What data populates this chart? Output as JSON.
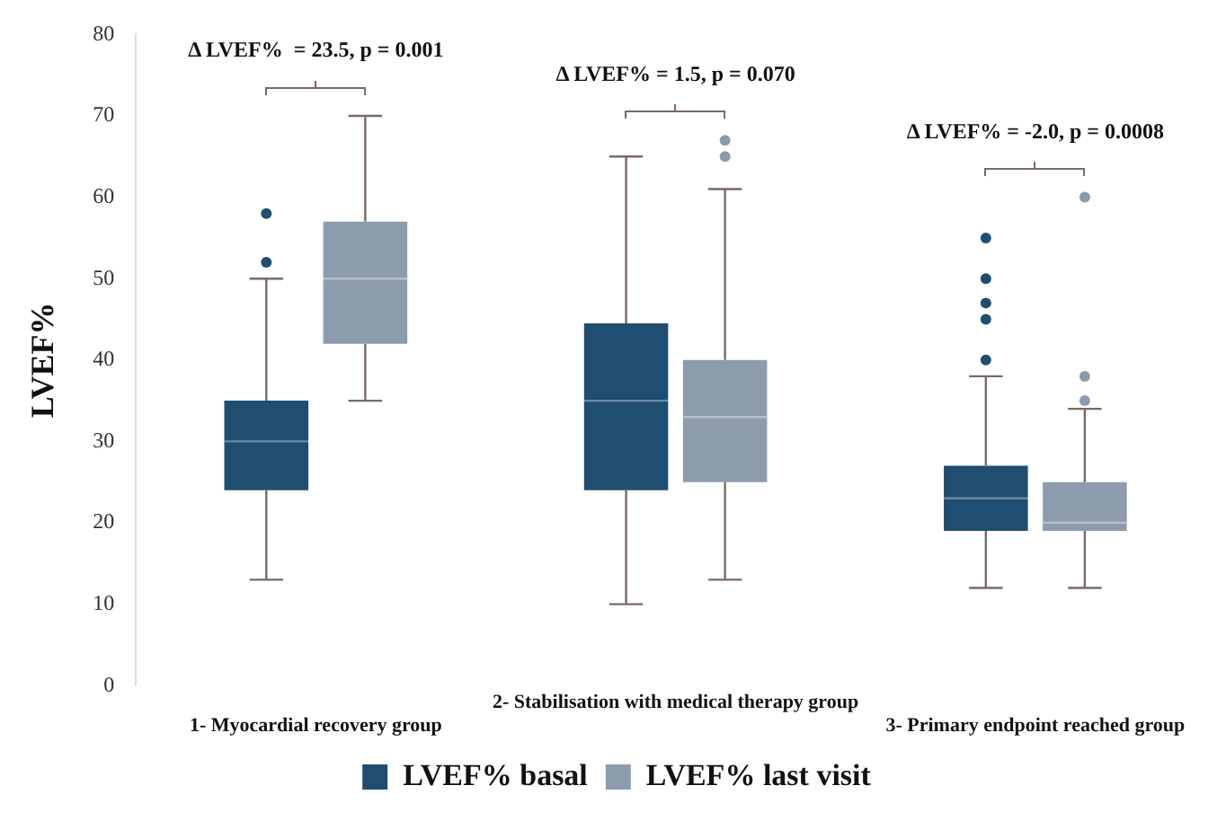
{
  "chart_data": {
    "type": "box",
    "ylabel": "LVEF%",
    "categories": [
      "1- Myocardial recovery group",
      "2- Stabilisation with medical therapy group",
      "3- Primary endpoint reached group"
    ],
    "ylim": [
      0,
      80
    ],
    "yticks": [
      0,
      10,
      20,
      30,
      40,
      50,
      60,
      70,
      80
    ],
    "grid": false,
    "legend": "bottom",
    "series": [
      {
        "name": "LVEF% basal",
        "color": "#1f4e70",
        "boxes": [
          {
            "low": 13,
            "q1": 24,
            "median": 30,
            "q3": 35,
            "high": 50,
            "outliers": [
              52,
              58
            ]
          },
          {
            "low": 10,
            "q1": 24,
            "median": 35,
            "q3": 44.5,
            "high": 65
          },
          {
            "low": 12,
            "q1": 19,
            "median": 23,
            "q3": 27,
            "high": 38,
            "outliers": [
              40,
              45,
              47,
              50,
              55
            ]
          }
        ]
      },
      {
        "name": "LVEF% last visit",
        "color": "#8c9cac",
        "boxes": [
          {
            "low": 35,
            "q1": 42,
            "median": 50,
            "q3": 57,
            "high": 70
          },
          {
            "low": 13,
            "q1": 25,
            "median": 33,
            "q3": 40,
            "high": 61,
            "outliers": [
              65,
              67
            ]
          },
          {
            "low": 12,
            "q1": 19,
            "median": 20,
            "q3": 25,
            "high": 34,
            "outliers": [
              35,
              38,
              60
            ]
          }
        ]
      }
    ],
    "annotations": [
      "Δ LVEF%  = 23.5, p = 0.001",
      "Δ LVEF% = 1.5, p = 0.070",
      "Δ LVEF% = -2.0, p = 0.0008"
    ]
  }
}
